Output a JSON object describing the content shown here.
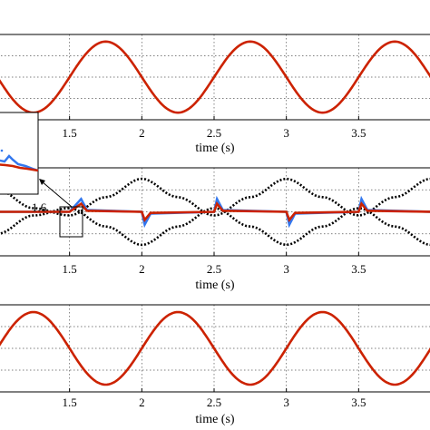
{
  "chart_data": [
    {
      "type": "line",
      "xlabel": "time (s)",
      "xticks": [
        "1.5",
        "2",
        "2.5",
        "3",
        "3.5"
      ],
      "xlim": [
        1.0,
        4.0
      ],
      "ylim": [
        -1.2,
        1.2
      ],
      "grid": true,
      "series": [
        {
          "color": "#cc2200",
          "x": [
            1.0,
            1.25,
            1.5,
            1.75,
            2.0,
            2.25,
            2.5,
            2.75,
            3.0,
            3.25,
            3.5,
            3.75,
            4.0
          ],
          "y": [
            0.0,
            -1.0,
            0.0,
            1.0,
            0.0,
            -1.0,
            0.0,
            1.0,
            0.0,
            -1.0,
            0.0,
            1.0,
            0.0
          ]
        }
      ]
    },
    {
      "type": "line",
      "xlabel": "time (s)",
      "xticks": [
        "1.5",
        "2",
        "2.5",
        "3",
        "3.5"
      ],
      "xlim": [
        1.0,
        4.0
      ],
      "ylim": [
        -1.2,
        1.2
      ],
      "grid": true,
      "annotation": "1.6",
      "series": [
        {
          "color": "#000000",
          "style": "dotted",
          "x": [
            1.0,
            1.25,
            1.5,
            1.75,
            2.0,
            2.25,
            2.5,
            2.75,
            3.0,
            3.25,
            3.5,
            3.75,
            4.0
          ],
          "y": [
            0.6,
            0.1,
            -0.1,
            0.4,
            0.9,
            0.4,
            -0.1,
            0.4,
            0.9,
            0.4,
            -0.1,
            0.4,
            0.9
          ]
        },
        {
          "color": "#000000",
          "style": "dotted",
          "x": [
            1.0,
            1.25,
            1.5,
            1.75,
            2.0,
            2.25,
            2.5,
            2.75,
            3.0,
            3.25,
            3.5,
            3.75,
            4.0
          ],
          "y": [
            -0.6,
            -0.1,
            0.1,
            -0.4,
            -0.9,
            -0.4,
            0.1,
            -0.4,
            -0.9,
            -0.4,
            0.1,
            -0.4,
            -0.9
          ]
        },
        {
          "color": "#3377ee",
          "x": [
            1.0,
            1.5,
            1.58,
            1.62,
            2.0,
            2.02,
            2.06,
            2.5,
            2.52,
            2.56,
            3.0,
            3.02,
            3.06,
            3.5,
            3.52,
            3.56,
            4.0
          ],
          "y": [
            0.0,
            0.0,
            0.35,
            0.05,
            0.0,
            -0.35,
            -0.05,
            0.0,
            0.35,
            0.05,
            0.0,
            -0.35,
            -0.05,
            0.0,
            0.35,
            0.05,
            0.0
          ]
        },
        {
          "color": "#cc2200",
          "x": [
            1.0,
            1.5,
            1.58,
            1.62,
            2.0,
            2.02,
            2.06,
            2.5,
            2.52,
            2.56,
            3.0,
            3.02,
            3.06,
            3.5,
            3.52,
            3.56,
            4.0
          ],
          "y": [
            0.0,
            0.0,
            0.22,
            0.03,
            0.0,
            -0.22,
            -0.03,
            0.0,
            0.22,
            0.03,
            0.0,
            -0.22,
            -0.03,
            0.0,
            0.22,
            0.03,
            0.0
          ]
        }
      ]
    },
    {
      "type": "line",
      "xlabel": "time (s)",
      "xticks": [
        "1.5",
        "2",
        "2.5",
        "3",
        "3.5"
      ],
      "xlim": [
        1.0,
        4.0
      ],
      "ylim": [
        -1.2,
        1.2
      ],
      "grid": true,
      "series": [
        {
          "color": "#cc2200",
          "x": [
            1.0,
            1.25,
            1.5,
            1.75,
            2.0,
            2.25,
            2.5,
            2.75,
            3.0,
            3.25,
            3.5,
            3.75,
            4.0
          ],
          "y": [
            0.0,
            1.0,
            0.0,
            -1.0,
            0.0,
            1.0,
            0.0,
            -1.0,
            0.0,
            1.0,
            0.0,
            -1.0,
            0.0
          ]
        }
      ]
    }
  ]
}
